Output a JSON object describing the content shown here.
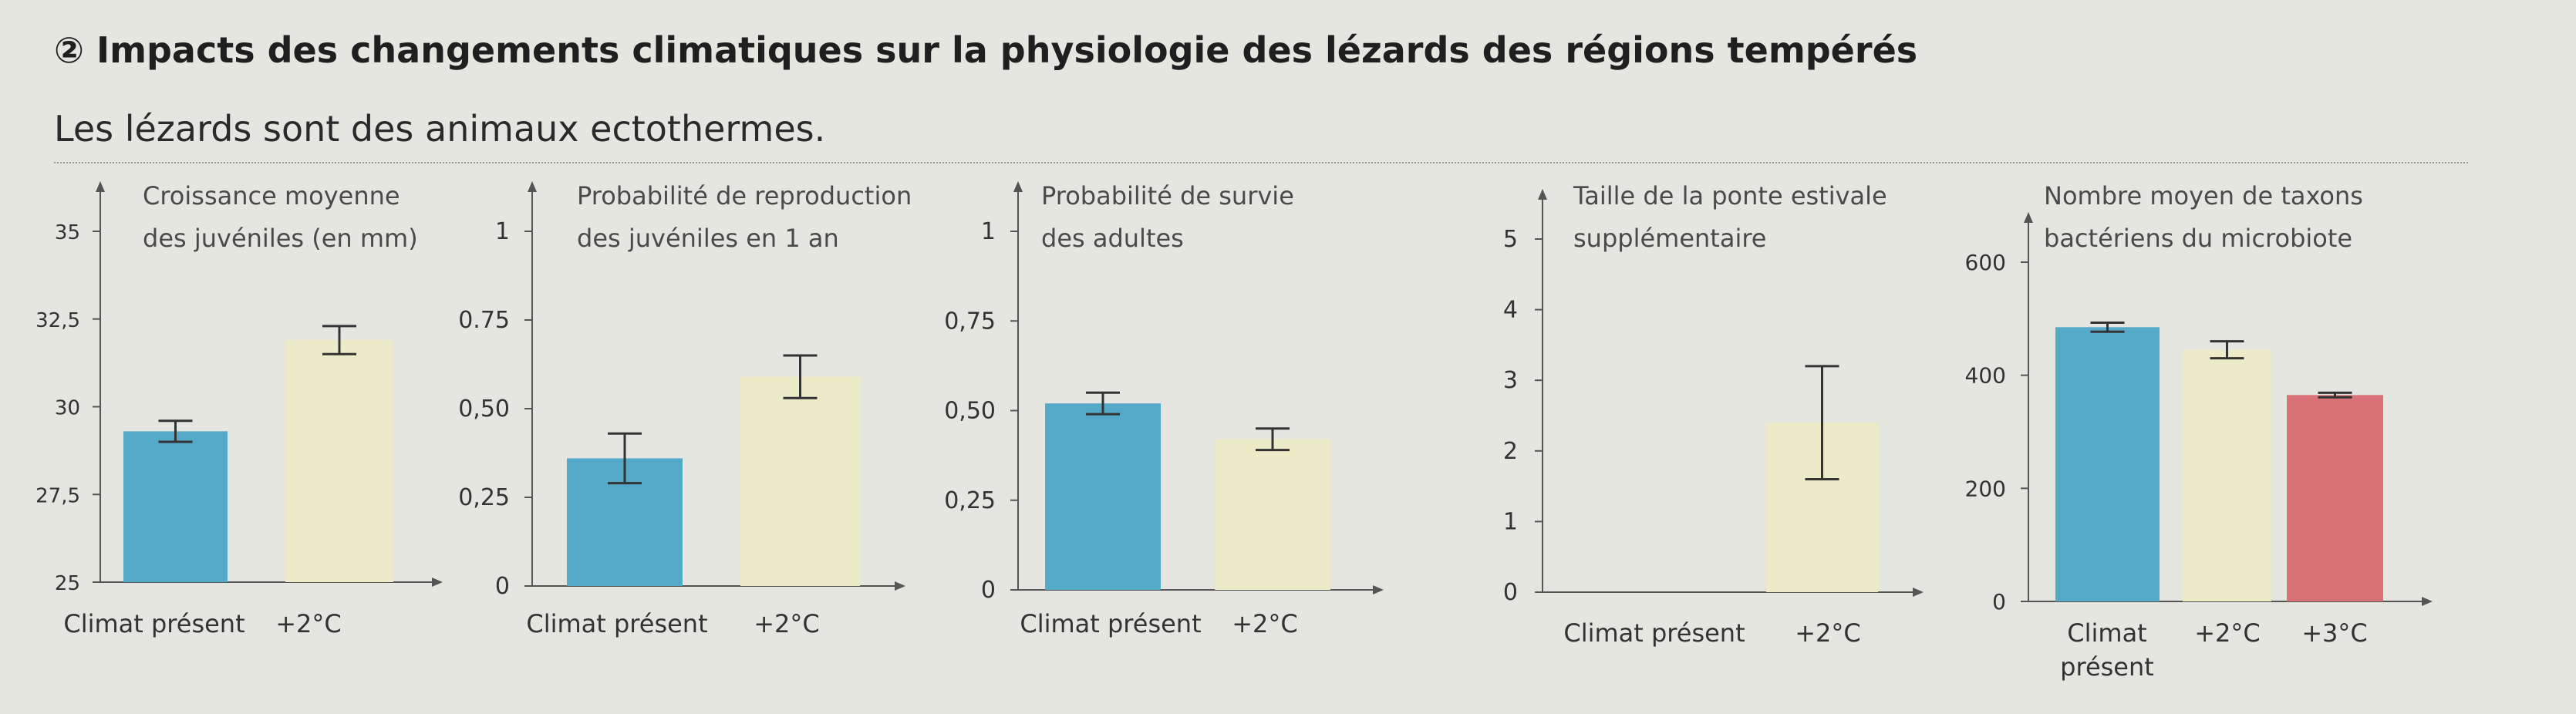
{
  "header": {
    "title": "② Impacts des changements climatiques sur la physiologie des lézards des régions tempérés",
    "subtitle": "Les lézards sont des animaux ectothermes."
  },
  "colors": {
    "present": "#54a9c8",
    "plus2": "#ecebc8",
    "plus3": "#d97277",
    "axis": "#555555",
    "errorbar": "#333333"
  },
  "chart_data": [
    {
      "type": "bar",
      "title": "",
      "ylabel": "Croissance moyenne des juvéniles (en mm)",
      "ylabel_lines": [
        "Croissance moyenne",
        "des juvéniles (en mm)"
      ],
      "categories": [
        "Climat présent",
        "+2°C"
      ],
      "values": [
        29.3,
        31.9
      ],
      "error": [
        0.3,
        0.4
      ],
      "ylim": [
        25,
        35
      ],
      "yticks": [
        "25",
        "27,5",
        "30",
        "32,5",
        "35"
      ],
      "ytick_values": [
        25,
        27.5,
        30,
        32.5,
        35
      ],
      "colors": [
        "#54a9c8",
        "#ecebc8"
      ]
    },
    {
      "type": "bar",
      "title": "",
      "ylabel": "Probabilité de reproduction des juvéniles en 1 an",
      "ylabel_lines": [
        "Probabilité de reproduction",
        "des juvéniles en 1 an"
      ],
      "categories": [
        "Climat présent",
        "+2°C"
      ],
      "values": [
        0.36,
        0.59
      ],
      "error": [
        0.07,
        0.06
      ],
      "ylim": [
        0,
        1
      ],
      "yticks": [
        "0",
        "0,25",
        "0,50",
        "0.75",
        "1"
      ],
      "ytick_values": [
        0,
        0.25,
        0.5,
        0.75,
        1
      ],
      "colors": [
        "#54a9c8",
        "#ecebc8"
      ]
    },
    {
      "type": "bar",
      "title": "",
      "ylabel": "Probabilité de survie des adultes",
      "ylabel_lines": [
        "Probabilité de survie",
        "des adultes"
      ],
      "categories": [
        "Climat présent",
        "+2°C"
      ],
      "values": [
        0.52,
        0.42
      ],
      "error": [
        0.03,
        0.03
      ],
      "ylim": [
        0,
        1
      ],
      "yticks": [
        "0",
        "0,25",
        "0,50",
        "0,75",
        "1"
      ],
      "ytick_values": [
        0,
        0.25,
        0.5,
        0.75,
        1
      ],
      "colors": [
        "#54a9c8",
        "#ecebc8"
      ]
    },
    {
      "type": "bar",
      "title": "",
      "ylabel": "Taille de la ponte estivale supplémentaire",
      "ylabel_lines": [
        "Taille de la ponte estivale",
        "supplémentaire"
      ],
      "categories": [
        "Climat présent",
        "+2°C"
      ],
      "values": [
        0,
        2.4
      ],
      "error": [
        0,
        0.8
      ],
      "ylim": [
        0,
        5
      ],
      "yticks": [
        "0",
        "1",
        "2",
        "3",
        "4",
        "5"
      ],
      "ytick_values": [
        0,
        1,
        2,
        3,
        4,
        5
      ],
      "colors": [
        "#54a9c8",
        "#ecebc8"
      ]
    },
    {
      "type": "bar",
      "title": "",
      "ylabel": "Nombre moyen de taxons bactériens du microbiote",
      "ylabel_lines": [
        "Nombre moyen de taxons",
        "bactériens du microbiote"
      ],
      "categories": [
        "Climat présent",
        "+2°C",
        "+3°C"
      ],
      "category_lines": [
        [
          "Climat",
          "présent"
        ],
        [
          "+2°C"
        ],
        [
          "+3°C"
        ]
      ],
      "values": [
        485,
        445,
        365
      ],
      "error": [
        8,
        15,
        4
      ],
      "ylim": [
        0,
        600
      ],
      "yticks": [
        "0",
        "200",
        "400",
        "600"
      ],
      "ytick_values": [
        0,
        200,
        400,
        600
      ],
      "colors": [
        "#54a9c8",
        "#ecebc8",
        "#d97277"
      ]
    }
  ]
}
